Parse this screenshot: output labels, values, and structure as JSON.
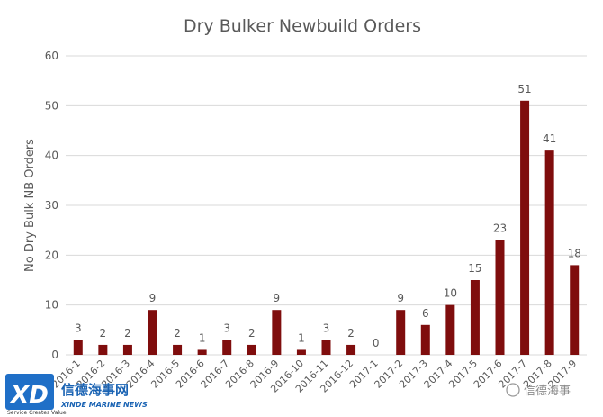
{
  "chart_data": {
    "type": "bar",
    "title": "Dry Bulker Newbuild Orders",
    "xlabel": "",
    "ylabel": "No Dry Bulk NB Orders",
    "ylim": [
      0,
      60
    ],
    "yticks": [
      0,
      10,
      20,
      30,
      40,
      50,
      60
    ],
    "grid": true,
    "legend": "none",
    "bar_color": "#7f0d0d",
    "categories": [
      "2016-1",
      "2016-2",
      "2016-3",
      "2016-4",
      "2016-5",
      "2016-6",
      "2016-7",
      "2016-8",
      "2016-9",
      "2016-10",
      "2016-11",
      "2016-12",
      "2017-1",
      "2017-2",
      "2017-3",
      "2017-4",
      "2017-5",
      "2017-6",
      "2017-7",
      "2017-8",
      "2017-9"
    ],
    "values": [
      3,
      2,
      2,
      9,
      2,
      1,
      3,
      2,
      9,
      1,
      3,
      2,
      0,
      9,
      6,
      10,
      15,
      23,
      51,
      41,
      18
    ]
  },
  "watermark": {
    "logo_letters": "XD",
    "cn_name": "信德海事网",
    "slogan": "Service Creates Value",
    "en_name": "XINDE MARINE NEWS",
    "right_text": "信德海事"
  }
}
